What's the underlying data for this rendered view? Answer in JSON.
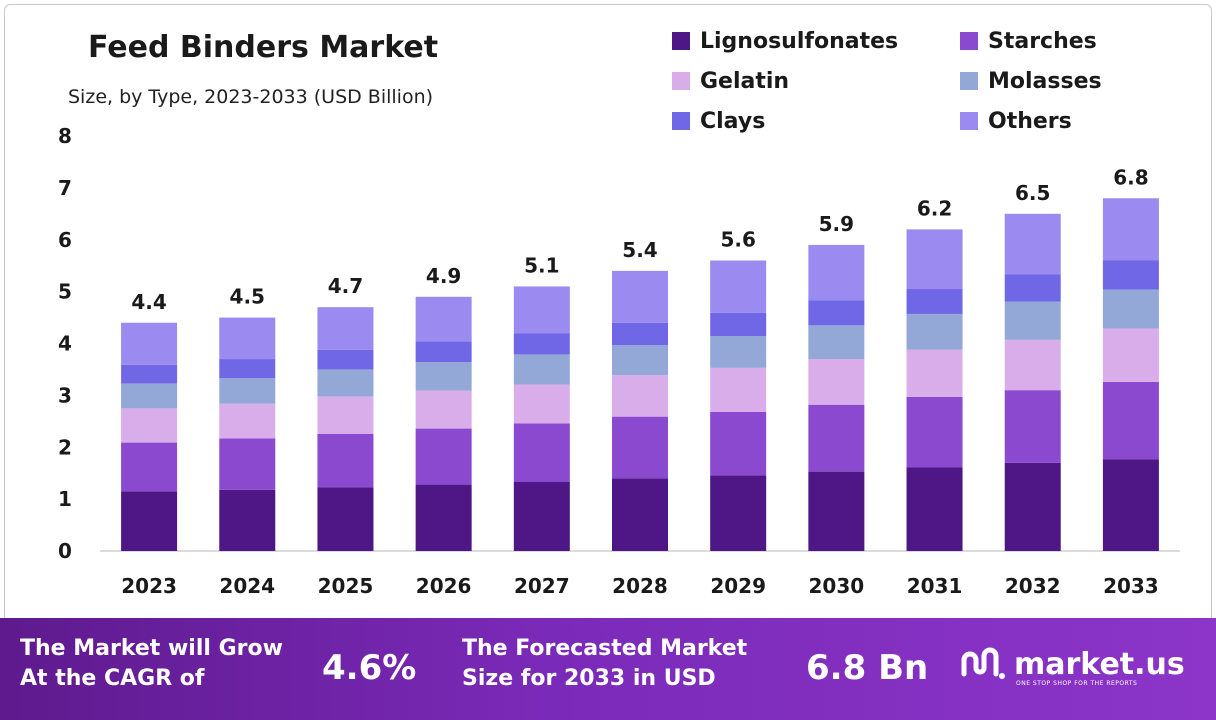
{
  "header": {
    "title": "Feed Binders Market",
    "subtitle": "Size, by Type, 2023-2033 (USD Billion)"
  },
  "legend": [
    {
      "label": "Lignosulfonates",
      "color": "#4e1785"
    },
    {
      "label": "Starches",
      "color": "#8a49cf"
    },
    {
      "label": "Gelatin",
      "color": "#d8ade9"
    },
    {
      "label": "Molasses",
      "color": "#93a8d7"
    },
    {
      "label": "Clays",
      "color": "#7067e6"
    },
    {
      "label": "Others",
      "color": "#9b8af0"
    }
  ],
  "chart_data": {
    "type": "bar",
    "stacked": true,
    "title": "Feed Binders Market",
    "subtitle": "Size, by Type, 2023-2033 (USD Billion)",
    "categories": [
      "2023",
      "2024",
      "2025",
      "2026",
      "2027",
      "2028",
      "2029",
      "2030",
      "2031",
      "2032",
      "2033"
    ],
    "totals": [
      4.4,
      4.5,
      4.7,
      4.9,
      5.1,
      5.4,
      5.6,
      5.9,
      6.2,
      6.5,
      6.8
    ],
    "series": [
      {
        "name": "Lignosulfonates",
        "color": "#4e1785",
        "values": [
          1.15,
          1.18,
          1.23,
          1.28,
          1.33,
          1.4,
          1.46,
          1.53,
          1.61,
          1.7,
          1.77
        ]
      },
      {
        "name": "Starches",
        "color": "#8a49cf",
        "values": [
          0.94,
          0.99,
          1.03,
          1.08,
          1.13,
          1.19,
          1.22,
          1.29,
          1.36,
          1.4,
          1.49
        ]
      },
      {
        "name": "Gelatin",
        "color": "#d8ade9",
        "values": [
          0.66,
          0.67,
          0.72,
          0.73,
          0.75,
          0.8,
          0.85,
          0.88,
          0.91,
          0.97,
          1.03
        ]
      },
      {
        "name": "Molasses",
        "color": "#93a8d7",
        "values": [
          0.48,
          0.49,
          0.52,
          0.55,
          0.58,
          0.58,
          0.61,
          0.65,
          0.69,
          0.74,
          0.75
        ]
      },
      {
        "name": "Clays",
        "color": "#7067e6",
        "values": [
          0.36,
          0.37,
          0.38,
          0.4,
          0.41,
          0.43,
          0.45,
          0.48,
          0.48,
          0.52,
          0.56
        ]
      },
      {
        "name": "Others",
        "color": "#9b8af0",
        "values": [
          0.81,
          0.8,
          0.82,
          0.86,
          0.9,
          1.0,
          1.01,
          1.07,
          1.15,
          1.17,
          1.2
        ]
      }
    ],
    "ylim": [
      0,
      8
    ],
    "yticks": [
      "0",
      "1",
      "2",
      "3",
      "4",
      "5",
      "6",
      "7",
      "8"
    ],
    "xlabel": "",
    "ylabel": "",
    "grid": false,
    "legend_position": "top-right"
  },
  "footer": {
    "cagr_text_line1": "The Market will Grow",
    "cagr_text_line2": "At the CAGR of",
    "cagr_value": "4.6%",
    "forecast_text_line1": "The Forecasted Market",
    "forecast_text_line2": "Size for 2033 in USD",
    "forecast_value": "6.8 Bn",
    "brand": "market.us",
    "tagline": "ONE STOP SHOP FOR THE REPORTS"
  }
}
